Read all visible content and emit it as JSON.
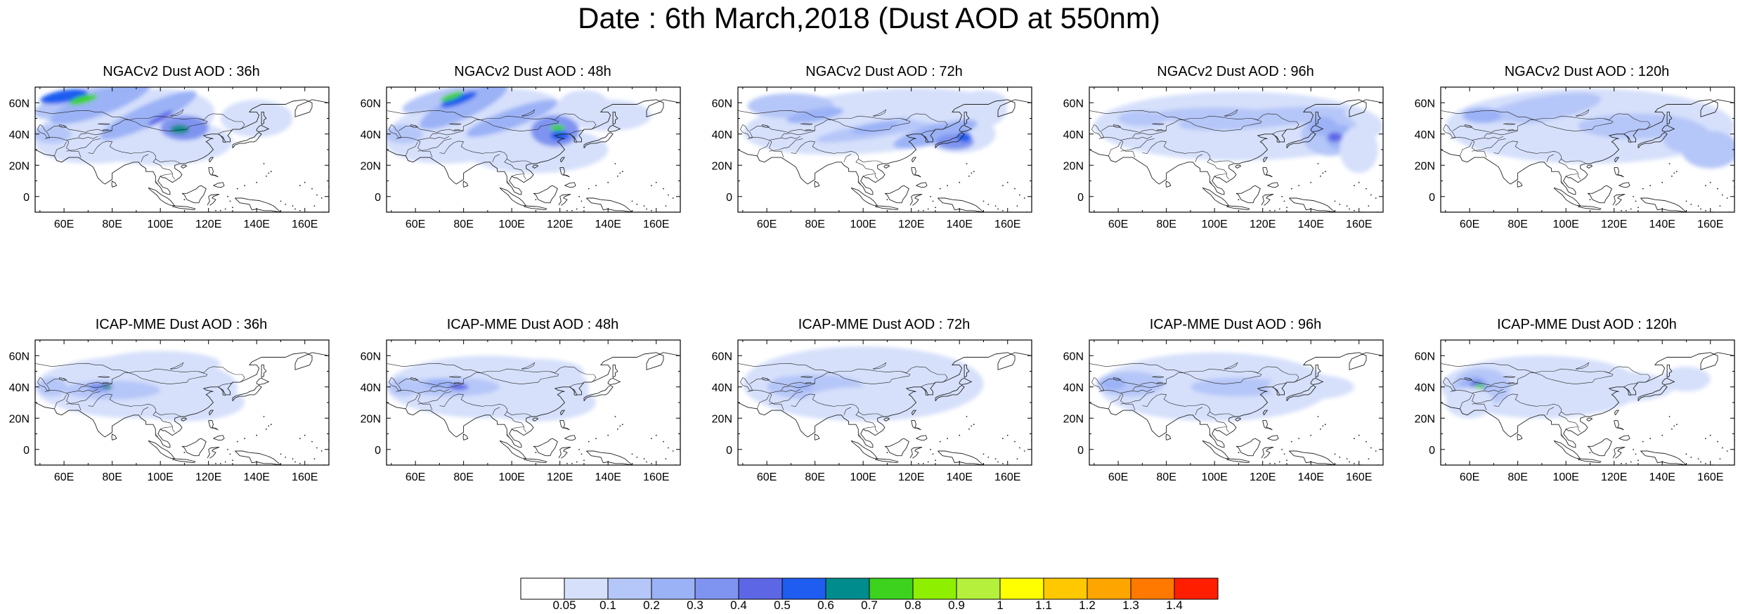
{
  "title": "Date : 6th March,2018 (Dust AOD at 550nm)",
  "panels": [
    {
      "title": "NGACv2 Dust AOD : 36h"
    },
    {
      "title": "NGACv2 Dust AOD : 48h"
    },
    {
      "title": "NGACv2 Dust AOD : 72h"
    },
    {
      "title": "NGACv2 Dust AOD : 96h"
    },
    {
      "title": "NGACv2 Dust AOD : 120h"
    },
    {
      "title": "ICAP-MME Dust AOD : 36h"
    },
    {
      "title": "ICAP-MME Dust AOD : 48h"
    },
    {
      "title": "ICAP-MME Dust AOD : 72h"
    },
    {
      "title": "ICAP-MME Dust AOD : 96h"
    },
    {
      "title": "ICAP-MME Dust AOD : 120h"
    }
  ],
  "lat_ticks": [
    "60N",
    "40N",
    "20N",
    "0"
  ],
  "lon_ticks": [
    "60E",
    "80E",
    "100E",
    "120E",
    "140E",
    "160E"
  ],
  "map_extent": {
    "lon": [
      48,
      170
    ],
    "lat": [
      -10,
      70
    ]
  },
  "colorbar": {
    "labels": [
      "0.05",
      "0.1",
      "0.2",
      "0.3",
      "0.4",
      "0.5",
      "0.6",
      "0.7",
      "0.8",
      "0.9",
      "1",
      "1.1",
      "1.2",
      "1.3",
      "1.4"
    ],
    "colors": [
      "#ffffff",
      "#d6e0fb",
      "#b5c6f8",
      "#9bb2f6",
      "#7f94f0",
      "#5d67e6",
      "#1e5df0",
      "#008c8c",
      "#3cd21e",
      "#8ef000",
      "#b4f03c",
      "#ffff00",
      "#ffc800",
      "#ffa500",
      "#ff7800",
      "#ff1e00"
    ]
  }
}
